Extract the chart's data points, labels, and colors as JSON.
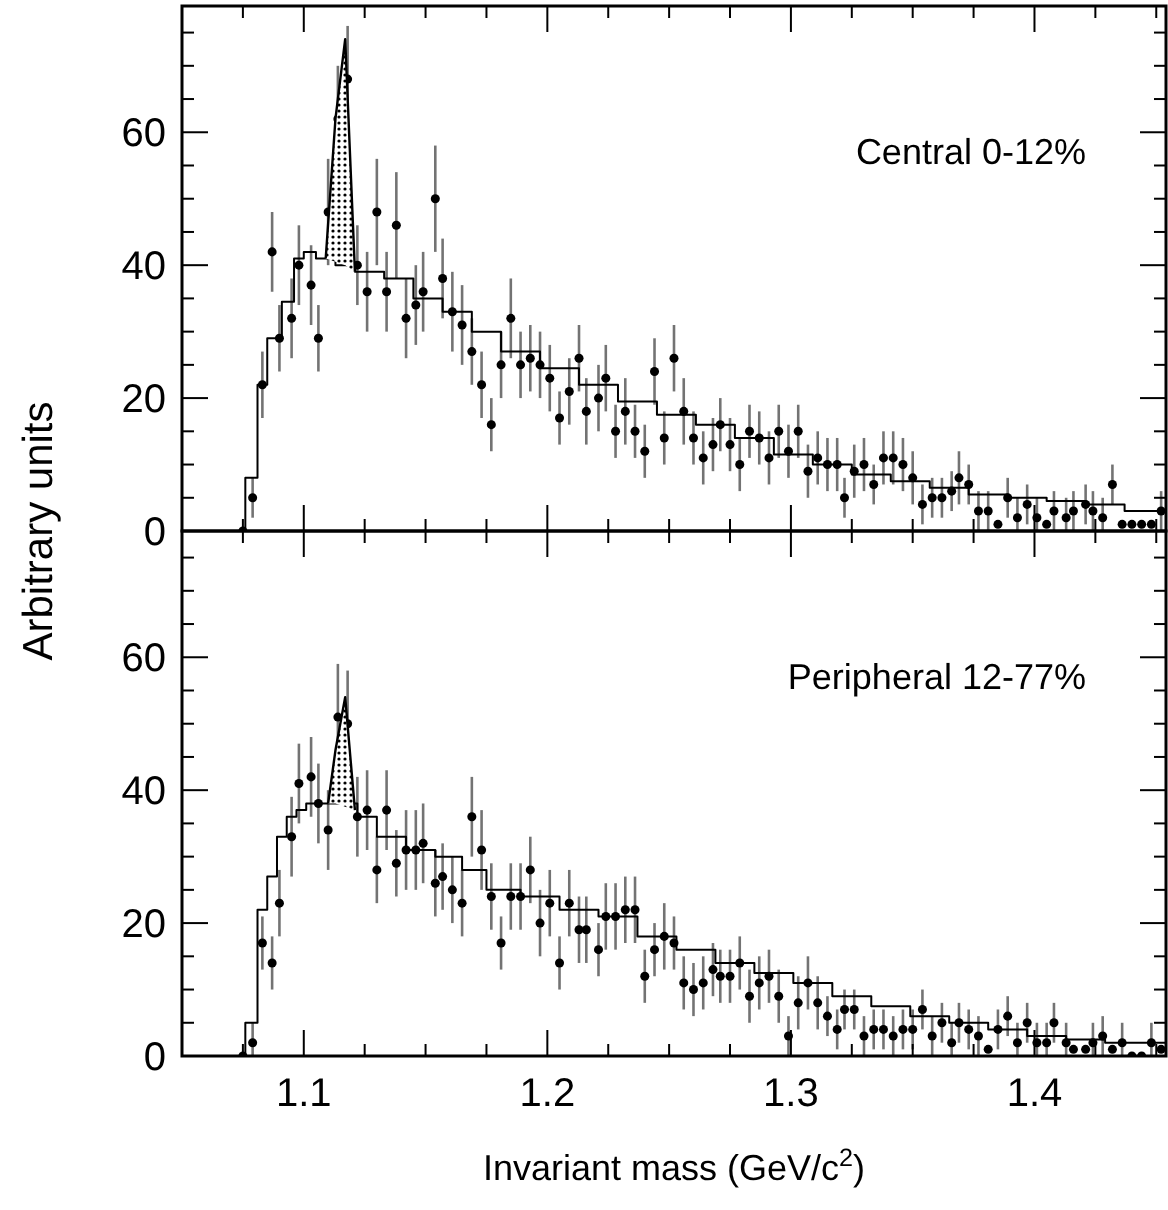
{
  "chart_data": [
    {
      "type": "scatter",
      "ylabel": "Arbitrary units",
      "annotations": [
        "Central 0-12%"
      ],
      "tick_labels": "y",
      "xlim": [
        1.05,
        1.454
      ],
      "ylim": [
        0,
        79
      ],
      "xticks": [
        {
          "value": 1.075,
          "label": null
        },
        {
          "value": 1.1,
          "label": null
        },
        {
          "value": 1.125,
          "label": null
        },
        {
          "value": 1.15,
          "label": null
        },
        {
          "value": 1.175,
          "label": null
        },
        {
          "value": 1.2,
          "label": null
        },
        {
          "value": 1.225,
          "label": null
        },
        {
          "value": 1.25,
          "label": null
        },
        {
          "value": 1.275,
          "label": null
        },
        {
          "value": 1.3,
          "label": null
        },
        {
          "value": 1.325,
          "label": null
        },
        {
          "value": 1.35,
          "label": null
        },
        {
          "value": 1.375,
          "label": null
        },
        {
          "value": 1.4,
          "label": null
        },
        {
          "value": 1.425,
          "label": null
        },
        {
          "value": 1.45,
          "label": null
        }
      ],
      "yticks": [
        0,
        {
          "value": 5,
          "label": null
        },
        {
          "value": 10,
          "label": null
        },
        {
          "value": 15,
          "label": null
        },
        20,
        {
          "value": 25,
          "label": null
        },
        {
          "value": 30,
          "label": null
        },
        {
          "value": 35,
          "label": null
        },
        40,
        {
          "value": 45,
          "label": null
        },
        {
          "value": 50,
          "label": null
        },
        {
          "value": 55,
          "label": null
        },
        60,
        {
          "value": 65,
          "label": null
        },
        {
          "value": 70,
          "label": null
        },
        {
          "value": 75,
          "label": null
        }
      ],
      "x": [
        1.075,
        1.079,
        1.083,
        1.087,
        1.09,
        1.095,
        1.098,
        1.103,
        1.106,
        1.11,
        1.114,
        1.118,
        1.122,
        1.126,
        1.13,
        1.134,
        1.138,
        1.142,
        1.146,
        1.149,
        1.154,
        1.157,
        1.161,
        1.165,
        1.169,
        1.173,
        1.177,
        1.181,
        1.185,
        1.189,
        1.193,
        1.197,
        1.201,
        1.205,
        1.209,
        1.213,
        1.216,
        1.221,
        1.224,
        1.228,
        1.232,
        1.236,
        1.24,
        1.244,
        1.248,
        1.252,
        1.256,
        1.26,
        1.264,
        1.268,
        1.271,
        1.275,
        1.279,
        1.283,
        1.287,
        1.291,
        1.295,
        1.299,
        1.303,
        1.307,
        1.311,
        1.315,
        1.319,
        1.322,
        1.326,
        1.33,
        1.334,
        1.338,
        1.342,
        1.346,
        1.35,
        1.354,
        1.358,
        1.362,
        1.366,
        1.369,
        1.373,
        1.377,
        1.381,
        1.385,
        1.389,
        1.393,
        1.397,
        1.401,
        1.405,
        1.408,
        1.413,
        1.416,
        1.421,
        1.424,
        1.428,
        1.432,
        1.436,
        1.44,
        1.444,
        1.448,
        1.452
      ],
      "series": [
        {
          "marker": "circle",
          "color": "#000000",
          "values": [
            0,
            5,
            22,
            42,
            29,
            32,
            40,
            37,
            29,
            48,
            62,
            68,
            40,
            36,
            48,
            36,
            46,
            32,
            34,
            36,
            50,
            38,
            33,
            31,
            27,
            22,
            16,
            25,
            32,
            25,
            26,
            25,
            23,
            17,
            21,
            26,
            18,
            20,
            23,
            15,
            18,
            15,
            12,
            24,
            14,
            26,
            18,
            14,
            11,
            13,
            16,
            13,
            10,
            15,
            14,
            11,
            15,
            12,
            15,
            9,
            11,
            10,
            10,
            5,
            9,
            10,
            7,
            11,
            11,
            10,
            8,
            4,
            5,
            5,
            6,
            8,
            7,
            3,
            3,
            1,
            5,
            2,
            4,
            2,
            1,
            3,
            2,
            3,
            4,
            3,
            2,
            7,
            1,
            1,
            1,
            1,
            3
          ],
          "errors": [
            null,
            3,
            5,
            6,
            5,
            6,
            6,
            6,
            5,
            8,
            8,
            8,
            6,
            6,
            8,
            6,
            8,
            6,
            6,
            6,
            8,
            6,
            6,
            6,
            5,
            5,
            4,
            5,
            6,
            5,
            5,
            5,
            5,
            4,
            5,
            5,
            5,
            5,
            5,
            4,
            5,
            4,
            4,
            5,
            4,
            5,
            5,
            4,
            4,
            4,
            4,
            4,
            4,
            4,
            4,
            4,
            4,
            4,
            4,
            4,
            4,
            4,
            4,
            3,
            4,
            4,
            3,
            4,
            4,
            4,
            4,
            3,
            3,
            3,
            3,
            4,
            3,
            3,
            3,
            null,
            3,
            [
              0,
              5
            ],
            3,
            [
              0,
              5
            ],
            null,
            3,
            [
              0,
              5
            ],
            3,
            3,
            3,
            [
              0,
              5
            ],
            3,
            null,
            null,
            null,
            null,
            3
          ]
        },
        {
          "type": "step",
          "marker": "none",
          "color": "#000000",
          "x": [
            1.05,
            1.076,
            1.081,
            1.085,
            1.091,
            1.096,
            1.1,
            1.105,
            1.113,
            1.121,
            1.133,
            1.145,
            1.157,
            1.169,
            1.181,
            1.197,
            1.213,
            1.229,
            1.245,
            1.261,
            1.277,
            1.293,
            1.309,
            1.325,
            1.341,
            1.357,
            1.373,
            1.389,
            1.405,
            1.421,
            1.437,
            1.454
          ],
          "values": [
            0,
            8,
            22,
            29,
            34.5,
            41,
            42,
            41,
            40,
            39,
            38,
            35,
            33,
            30,
            27,
            24.5,
            22,
            19.5,
            17.5,
            16,
            14,
            11.5,
            10,
            8.5,
            7.5,
            6.5,
            5.5,
            5,
            4.5,
            4,
            3,
            3
          ]
        },
        {
          "type": "line",
          "marker": "none",
          "color": "#000000",
          "x": [
            1.109,
            1.113,
            1.117,
            1.121
          ],
          "values": [
            41,
            62,
            74,
            39
          ],
          "lower": [
            41,
            40.5,
            40,
            39
          ],
          "upper": [
            41,
            62,
            74,
            39
          ]
        }
      ]
    },
    {
      "type": "scatter",
      "xlabel": "Invariant mass (GeV/c$^{2}$)",
      "annotations": [
        "Peripheral 12-77%"
      ],
      "xlim": [
        1.05,
        1.454
      ],
      "ylim": [
        0,
        79
      ],
      "xticks": [
        {
          "value": 1.075,
          "label": null
        },
        1.1,
        {
          "value": 1.125,
          "label": null
        },
        {
          "value": 1.15,
          "label": null
        },
        {
          "value": 1.175,
          "label": null
        },
        1.2,
        {
          "value": 1.225,
          "label": null
        },
        {
          "value": 1.25,
          "label": null
        },
        {
          "value": 1.275,
          "label": null
        },
        1.3,
        {
          "value": 1.325,
          "label": null
        },
        {
          "value": 1.35,
          "label": null
        },
        {
          "value": 1.375,
          "label": null
        },
        1.4,
        {
          "value": 1.425,
          "label": null
        },
        {
          "value": 1.45,
          "label": null
        }
      ],
      "yticks": [
        0,
        {
          "value": 5,
          "label": null
        },
        {
          "value": 10,
          "label": null
        },
        {
          "value": 15,
          "label": null
        },
        20,
        {
          "value": 25,
          "label": null
        },
        {
          "value": 30,
          "label": null
        },
        {
          "value": 35,
          "label": null
        },
        40,
        {
          "value": 45,
          "label": null
        },
        {
          "value": 50,
          "label": null
        },
        {
          "value": 55,
          "label": null
        },
        60,
        {
          "value": 65,
          "label": null
        },
        {
          "value": 70,
          "label": null
        },
        {
          "value": 75,
          "label": null
        }
      ],
      "x": [
        1.075,
        1.079,
        1.083,
        1.087,
        1.09,
        1.095,
        1.098,
        1.103,
        1.106,
        1.11,
        1.114,
        1.118,
        1.122,
        1.126,
        1.13,
        1.134,
        1.138,
        1.142,
        1.146,
        1.149,
        1.154,
        1.157,
        1.161,
        1.165,
        1.169,
        1.173,
        1.177,
        1.181,
        1.185,
        1.189,
        1.193,
        1.197,
        1.201,
        1.205,
        1.209,
        1.213,
        1.216,
        1.221,
        1.224,
        1.228,
        1.232,
        1.236,
        1.24,
        1.244,
        1.248,
        1.252,
        1.256,
        1.26,
        1.264,
        1.268,
        1.271,
        1.275,
        1.279,
        1.283,
        1.287,
        1.291,
        1.295,
        1.299,
        1.303,
        1.307,
        1.311,
        1.315,
        1.319,
        1.322,
        1.326,
        1.33,
        1.334,
        1.338,
        1.342,
        1.346,
        1.35,
        1.354,
        1.358,
        1.362,
        1.366,
        1.369,
        1.373,
        1.377,
        1.381,
        1.385,
        1.389,
        1.393,
        1.397,
        1.401,
        1.405,
        1.408,
        1.413,
        1.416,
        1.421,
        1.424,
        1.428,
        1.432,
        1.436,
        1.44,
        1.444,
        1.448,
        1.452
      ],
      "series": [
        {
          "marker": "circle",
          "color": "#000000",
          "values": [
            0,
            2,
            17,
            14,
            23,
            33,
            41,
            42,
            38,
            34,
            51,
            50,
            36,
            37,
            28,
            37,
            29,
            31,
            31,
            32,
            26,
            27,
            25,
            23,
            36,
            31,
            24,
            17,
            24,
            24,
            28,
            20,
            23,
            14,
            23,
            19,
            19,
            16,
            21,
            21,
            22,
            22,
            12,
            16,
            18,
            17,
            11,
            10,
            11,
            13,
            12,
            12,
            14,
            9,
            11,
            12,
            9,
            3,
            8,
            11,
            8,
            6,
            4,
            7,
            7,
            3,
            4,
            4,
            3,
            4,
            4,
            7,
            3,
            5,
            2,
            5,
            4,
            3,
            1,
            4,
            6,
            2,
            5,
            2,
            2,
            5,
            2,
            1,
            1,
            2,
            3,
            1,
            2,
            0,
            0,
            2,
            1
          ],
          "errors": [
            null,
            [
              0,
              5
            ],
            4,
            4,
            5,
            6,
            6,
            6,
            6,
            6,
            8,
            8,
            6,
            6,
            5,
            6,
            5,
            6,
            6,
            6,
            5,
            5,
            5,
            5,
            6,
            6,
            5,
            4,
            5,
            5,
            5,
            5,
            5,
            4,
            5,
            5,
            5,
            4,
            5,
            5,
            5,
            5,
            4,
            4,
            5,
            4,
            4,
            4,
            4,
            4,
            4,
            4,
            4,
            4,
            4,
            4,
            4,
            3,
            4,
            4,
            4,
            3,
            3,
            3,
            3,
            3,
            3,
            3,
            3,
            3,
            3,
            3,
            3,
            3,
            [
              0,
              5
            ],
            3,
            3,
            3,
            null,
            3,
            3,
            [
              0,
              5
            ],
            3,
            [
              0,
              5
            ],
            [
              0,
              5
            ],
            3,
            [
              0,
              5
            ],
            null,
            null,
            [
              0,
              5
            ],
            3,
            null,
            [
              0,
              5
            ],
            null,
            null,
            [
              0,
              5
            ],
            null
          ]
        },
        {
          "type": "step",
          "marker": "none",
          "color": "#000000",
          "x": [
            1.05,
            1.076,
            1.081,
            1.085,
            1.089,
            1.093,
            1.097,
            1.101,
            1.122,
            1.13,
            1.142,
            1.154,
            1.165,
            1.175,
            1.189,
            1.205,
            1.221,
            1.237,
            1.253,
            1.269,
            1.285,
            1.301,
            1.317,
            1.333,
            1.349,
            1.365,
            1.381,
            1.397,
            1.413,
            1.429,
            1.454
          ],
          "values": [
            0,
            5,
            22,
            27,
            33,
            36,
            37,
            38,
            36,
            33,
            31,
            30,
            28,
            25,
            24,
            22,
            21,
            18,
            16,
            14,
            12.5,
            11,
            9,
            7.5,
            6,
            5,
            4,
            3,
            2.5,
            2,
            2
          ]
        },
        {
          "type": "line",
          "marker": "none",
          "color": "#000000",
          "x": [
            1.11,
            1.113,
            1.117,
            1.121
          ],
          "values": [
            38,
            46,
            54,
            37
          ],
          "lower": [
            38,
            38,
            37.5,
            37
          ],
          "upper": [
            38,
            46,
            54,
            37
          ]
        }
      ]
    }
  ]
}
